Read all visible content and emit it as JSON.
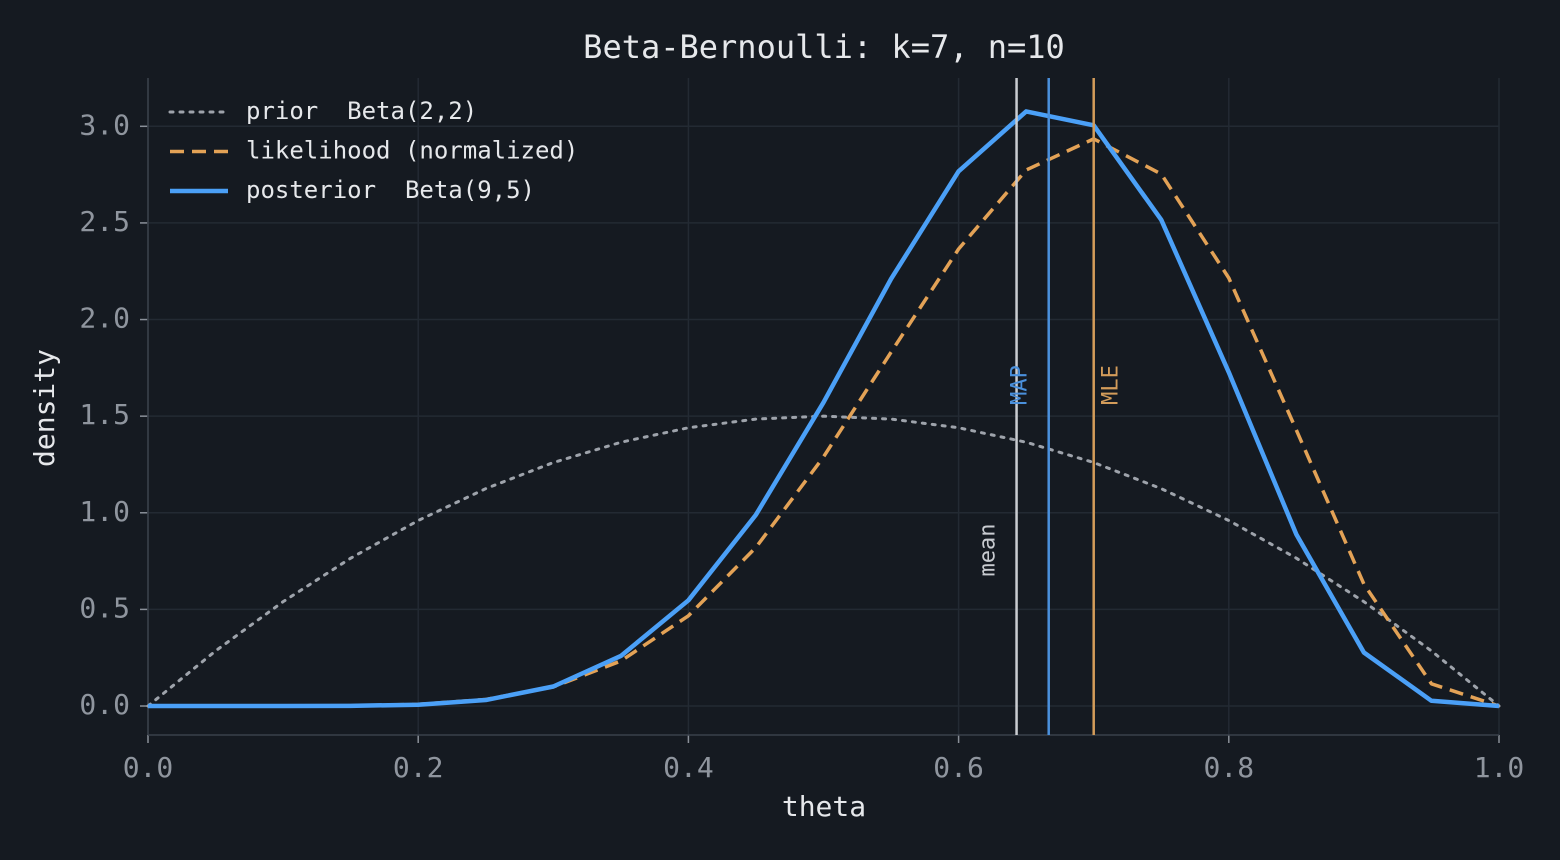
{
  "chart_data": {
    "type": "line",
    "title": "Beta-Bernoulli: k=7, n=10",
    "x_label": "theta",
    "y_label": "density",
    "x": [
      0,
      0.05,
      0.1,
      0.15,
      0.2,
      0.25,
      0.3,
      0.35,
      0.4,
      0.45,
      0.5,
      0.55,
      0.6,
      0.65,
      0.7,
      0.75,
      0.8,
      0.85,
      0.9,
      0.95,
      1
    ],
    "series": [
      {
        "name": "prior  Beta(2,2)",
        "color": "#9ea3ab",
        "dash": "dotted",
        "values": [
          0,
          0.285,
          0.54,
          0.765,
          0.96,
          1.125,
          1.26,
          1.365,
          1.44,
          1.485,
          1.5,
          1.485,
          1.44,
          1.365,
          1.26,
          1.125,
          0.96,
          0.765,
          0.54,
          0.285,
          0
        ]
      },
      {
        "name": "likelihood (normalized)",
        "color": "#e3a256",
        "dash": "dashed",
        "values": [
          0,
          0,
          0.0001,
          0.0014,
          0.0087,
          0.034,
          0.099,
          0.233,
          0.467,
          0.821,
          1.289,
          1.831,
          2.365,
          2.774,
          2.935,
          2.753,
          2.215,
          1.428,
          0.631,
          0.115,
          0
        ]
      },
      {
        "name": "posterior  Beta(9,5)",
        "color": "#4ba0f7",
        "dash": "solid",
        "values": [
          0,
          0,
          0,
          0.0009,
          0.0068,
          0.031,
          0.101,
          0.259,
          0.547,
          0.99,
          1.571,
          2.21,
          2.767,
          3.077,
          3.005,
          2.516,
          1.727,
          0.888,
          0.277,
          0.027,
          0
        ]
      }
    ],
    "vlines": [
      {
        "label": "mean",
        "value": 0.6429,
        "color": "#c9ccd1"
      },
      {
        "label": "MAP",
        "value": 0.6667,
        "color": "#4a90dc"
      },
      {
        "label": "MLE",
        "value": 0.7,
        "color": "#d39c5a"
      }
    ],
    "xlim": [
      0,
      1
    ],
    "ylim": [
      -0.15,
      3.25
    ],
    "xticks": [
      {
        "value": 0,
        "label": "0.0"
      },
      {
        "value": 0.2,
        "label": "0.2"
      },
      {
        "value": 0.4,
        "label": "0.4"
      },
      {
        "value": 0.6,
        "label": "0.6"
      },
      {
        "value": 0.8,
        "label": "0.8"
      },
      {
        "value": 1,
        "label": "1.0"
      }
    ],
    "yticks": [
      {
        "value": 0,
        "label": "0.0"
      },
      {
        "value": 0.5,
        "label": "0.5"
      },
      {
        "value": 1,
        "label": "1.0"
      },
      {
        "value": 1.5,
        "label": "1.5"
      },
      {
        "value": 2,
        "label": "2.0"
      },
      {
        "value": 2.5,
        "label": "2.5"
      },
      {
        "value": 3,
        "label": "3.0"
      }
    ],
    "grid": true,
    "legend": "upper left"
  }
}
